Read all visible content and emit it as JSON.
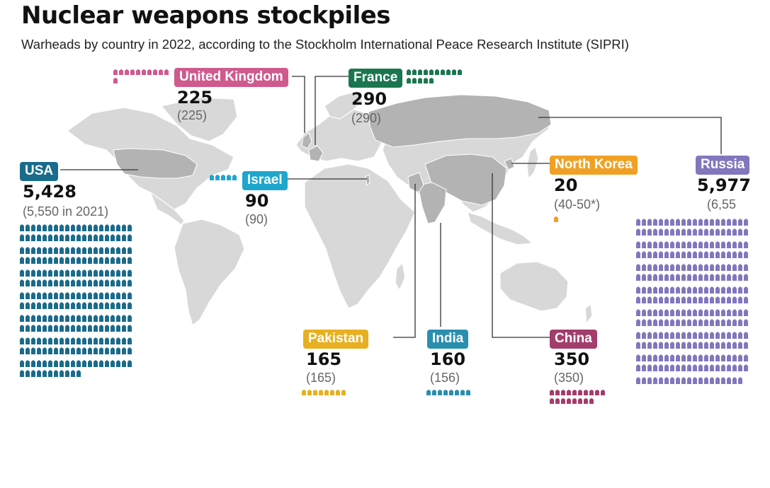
{
  "title": "Nuclear weapons stockpiles",
  "subtitle": "Warheads by country in 2022, according to the Stockholm International Peace Research Institute (SIPRI)",
  "colors": {
    "map": "#d8d8d8",
    "map_highlight": "#b3b3b3",
    "usa": "#1a6b8c",
    "uk": "#cf5a8e",
    "france": "#1b7650",
    "israel": "#1ea6cd",
    "north_korea": "#f0a125",
    "russia": "#8277bd",
    "pakistan": "#e8b020",
    "india": "#2a8faf",
    "china": "#a33d6b"
  },
  "chart_data": {
    "type": "pictogram-map",
    "unit": "warheads",
    "countries": [
      {
        "key": "usa",
        "name": "USA",
        "value": 5428,
        "value_label": "5,428",
        "previous_label": "(5,550 in 2021)"
      },
      {
        "key": "uk",
        "name": "United Kingdom",
        "value": 225,
        "value_label": "225",
        "previous_label": "(225)"
      },
      {
        "key": "france",
        "name": "France",
        "value": 290,
        "value_label": "290",
        "previous_label": "(290)"
      },
      {
        "key": "israel",
        "name": "Israel",
        "value": 90,
        "value_label": "90",
        "previous_label": "(90)"
      },
      {
        "key": "north_korea",
        "name": "North Korea",
        "value": 20,
        "value_label": "20",
        "previous_label": "(40-50*)"
      },
      {
        "key": "russia",
        "name": "Russia",
        "value": 5977,
        "value_label": "5,977",
        "previous_label": "(6,55"
      },
      {
        "key": "pakistan",
        "name": "Pakistan",
        "value": 165,
        "value_label": "165",
        "previous_label": "(165)"
      },
      {
        "key": "india",
        "name": "India",
        "value": 160,
        "value_label": "160",
        "previous_label": "(156)"
      },
      {
        "key": "china",
        "name": "China",
        "value": 350,
        "value_label": "350",
        "previous_label": "(350)"
      }
    ]
  }
}
